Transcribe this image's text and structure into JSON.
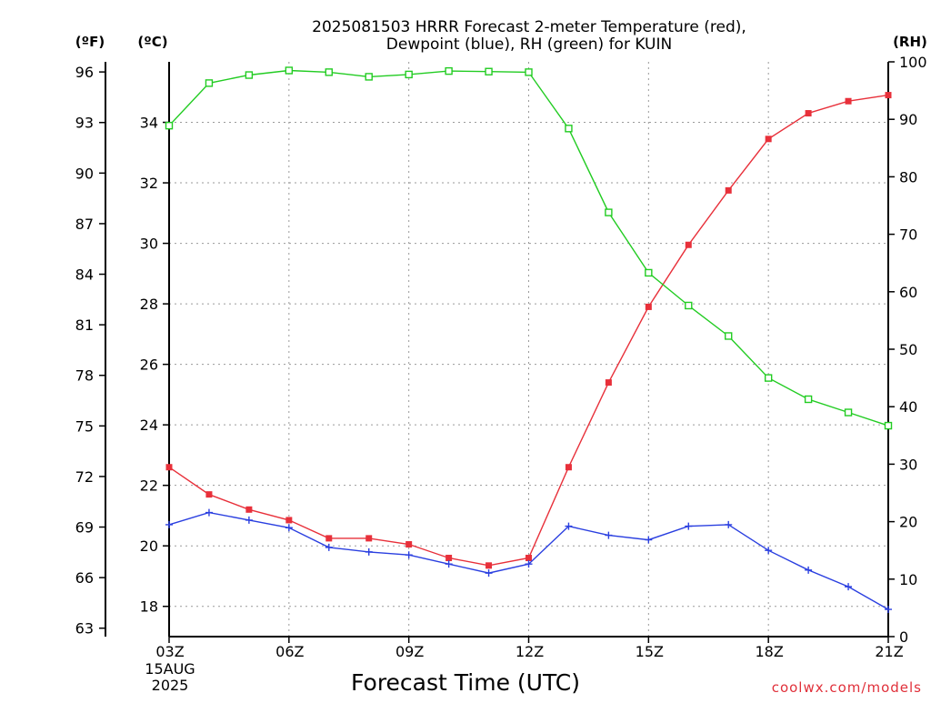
{
  "chart_data": {
    "type": "line",
    "title_line1": "2025081503 HRRR Forecast 2-meter Temperature (red),",
    "title_line2": "Dewpoint (blue), RH (green) for KUIN",
    "xlabel": "Forecast Time (UTC)",
    "credit": "coolwx.com/models",
    "x": [
      "03Z",
      "04Z",
      "05Z",
      "06Z",
      "07Z",
      "08Z",
      "09Z",
      "10Z",
      "11Z",
      "12Z",
      "13Z",
      "14Z",
      "15Z",
      "16Z",
      "17Z",
      "18Z",
      "19Z",
      "20Z",
      "21Z"
    ],
    "xtick_labels": [
      "03Z",
      "06Z",
      "09Z",
      "12Z",
      "15Z",
      "18Z",
      "21Z"
    ],
    "date_label_line1": "15AUG",
    "date_label_line2": "2025",
    "left_outer_axis": {
      "unit": "(ºF)",
      "ticks": [
        "63",
        "66",
        "69",
        "72",
        "75",
        "78",
        "81",
        "84",
        "87",
        "90",
        "93",
        "96"
      ],
      "range": [
        62.5,
        96.6
      ]
    },
    "left_inner_axis": {
      "unit": "(ºC)",
      "ticks": [
        "18",
        "20",
        "22",
        "24",
        "26",
        "28",
        "30",
        "32",
        "34"
      ],
      "range": [
        17.0,
        36.0
      ]
    },
    "right_axis": {
      "unit": "(RH)",
      "ticks": [
        "0",
        "10",
        "20",
        "30",
        "40",
        "50",
        "60",
        "70",
        "80",
        "90",
        "100"
      ],
      "range": [
        0,
        100
      ]
    },
    "grid": true,
    "series": [
      {
        "name": "Temperature",
        "axis": "celsius",
        "color": "#e8303a",
        "marker": "filled-square",
        "values": [
          22.6,
          21.7,
          21.2,
          20.85,
          20.25,
          20.25,
          20.05,
          19.6,
          19.35,
          19.6,
          22.6,
          25.4,
          27.9,
          29.95,
          31.75,
          33.45,
          34.3,
          34.7,
          34.9
        ]
      },
      {
        "name": "Dewpoint",
        "axis": "celsius",
        "color": "#2a3fe0",
        "marker": "plus",
        "values": [
          20.7,
          21.1,
          20.85,
          20.6,
          19.95,
          19.8,
          19.7,
          19.4,
          19.1,
          19.4,
          20.65,
          20.35,
          20.2,
          20.65,
          20.7,
          19.85,
          19.2,
          18.65,
          17.9
        ]
      },
      {
        "name": "RH",
        "axis": "rh",
        "color": "#22cc22",
        "marker": "open-square",
        "values": [
          88.9,
          96.3,
          97.7,
          98.5,
          98.2,
          97.4,
          97.8,
          98.4,
          98.3,
          98.2,
          88.4,
          73.8,
          63.3,
          57.6,
          52.3,
          45.0,
          41.3,
          39.0,
          36.7
        ]
      }
    ]
  }
}
